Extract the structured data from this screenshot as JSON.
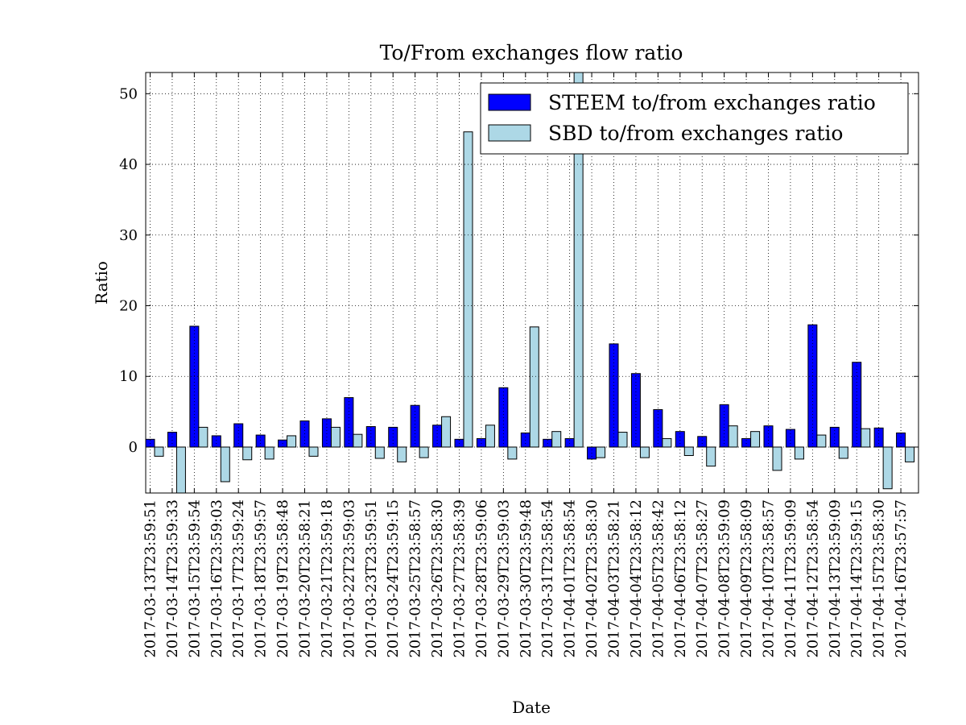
{
  "chart_data": {
    "type": "bar",
    "title": "To/From exchanges flow ratio",
    "x_label": "Date",
    "y_label": "Ratio",
    "categories": [
      "2017-03-13T23:59:51",
      "2017-03-14T23:59:33",
      "2017-03-15T23:59:54",
      "2017-03-16T23:59:03",
      "2017-03-17T23:59:24",
      "2017-03-18T23:59:57",
      "2017-03-19T23:58:48",
      "2017-03-20T23:58:21",
      "2017-03-21T23:59:18",
      "2017-03-22T23:59:03",
      "2017-03-23T23:59:51",
      "2017-03-24T23:59:15",
      "2017-03-25T23:58:57",
      "2017-03-26T23:58:30",
      "2017-03-27T23:58:39",
      "2017-03-28T23:59:06",
      "2017-03-29T23:59:03",
      "2017-03-30T23:59:48",
      "2017-03-31T23:58:54",
      "2017-04-01T23:58:54",
      "2017-04-02T23:58:30",
      "2017-04-03T23:58:21",
      "2017-04-04T23:58:12",
      "2017-04-05T23:58:42",
      "2017-04-06T23:58:12",
      "2017-04-07T23:58:27",
      "2017-04-08T23:59:09",
      "2017-04-09T23:58:09",
      "2017-04-10T23:58:57",
      "2017-04-11T23:59:09",
      "2017-04-12T23:58:54",
      "2017-04-13T23:59:09",
      "2017-04-14T23:59:15",
      "2017-04-15T23:58:30",
      "2017-04-16T23:57:57"
    ],
    "series": [
      {
        "name": "STEEM to/from exchanges ratio",
        "color": "#0000ff",
        "values": [
          1.1,
          2.1,
          17.1,
          1.6,
          3.3,
          1.7,
          1.0,
          3.7,
          4.0,
          7.0,
          2.9,
          2.8,
          5.9,
          3.1,
          1.1,
          1.2,
          8.4,
          2.0,
          1.1,
          1.2,
          -1.7,
          14.6,
          10.4,
          5.3,
          2.2,
          1.5,
          6.0,
          1.2,
          3.0,
          2.5,
          17.3,
          2.8,
          12.0,
          2.7,
          2.0
        ]
      },
      {
        "name": "SBD to/from exchanges ratio",
        "color": "#add8e6",
        "values": [
          -1.3,
          -7.0,
          2.8,
          -4.9,
          -1.8,
          -1.7,
          1.6,
          -1.3,
          2.8,
          1.8,
          -1.6,
          -2.1,
          -1.5,
          4.3,
          44.6,
          3.1,
          -1.7,
          17.0,
          2.2,
          55.0,
          -1.5,
          2.1,
          -1.5,
          1.2,
          -1.2,
          -2.7,
          3.0,
          2.2,
          -3.3,
          -1.7,
          1.7,
          -1.6,
          2.6,
          -5.9,
          -2.1
        ]
      }
    ],
    "ylim": [
      -6.5,
      53
    ],
    "yticks": [
      0,
      10,
      20,
      30,
      40,
      50
    ],
    "grid": true,
    "legend": "upper right"
  }
}
